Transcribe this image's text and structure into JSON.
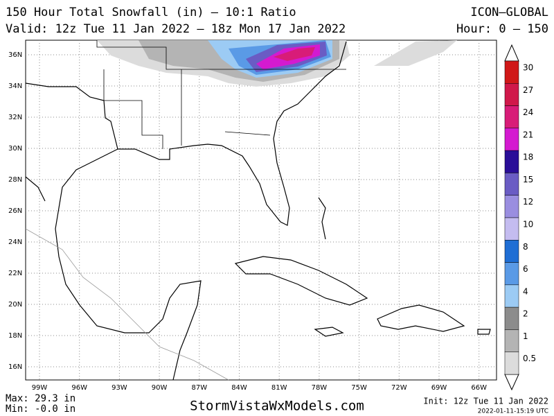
{
  "header": {
    "title": "150 Hour Total Snowfall (in) – 10:1 Ratio",
    "model": "ICON–GLOBAL",
    "valid": "Valid: 12z Tue 11 Jan 2022 – 18z Mon 17 Jan 2022",
    "hour": "Hour: 0 – 150"
  },
  "map": {
    "lat_labels": [
      "36N",
      "34N",
      "32N",
      "30N",
      "28N",
      "26N",
      "24N",
      "22N",
      "20N",
      "18N",
      "16N"
    ],
    "lon_labels": [
      "99W",
      "96W",
      "93W",
      "90W",
      "87W",
      "84W",
      "81W",
      "78W",
      "75W",
      "72W",
      "69W",
      "66W"
    ]
  },
  "legend": {
    "levels": [
      {
        "label": "30",
        "color": "#d01818"
      },
      {
        "label": "27",
        "color": "#d0184a"
      },
      {
        "label": "24",
        "color": "#d81c78"
      },
      {
        "label": "21",
        "color": "#d41ad0"
      },
      {
        "label": "18",
        "color": "#2a0e98"
      },
      {
        "label": "15",
        "color": "#6a5cc4"
      },
      {
        "label": "12",
        "color": "#9a8ee0"
      },
      {
        "label": "10",
        "color": "#c4bcf0"
      },
      {
        "label": "8",
        "color": "#1f6ed4"
      },
      {
        "label": "6",
        "color": "#5a9ae6"
      },
      {
        "label": "4",
        "color": "#9ccbf4"
      },
      {
        "label": "2",
        "color": "#8c8c8c"
      },
      {
        "label": "1",
        "color": "#b4b4b4"
      },
      {
        "label": "0.5",
        "color": "#dcdcdc"
      }
    ]
  },
  "footer": {
    "max": "Max: 29.3 in",
    "min": "Min: -0.0 in",
    "site": "StormVistaWxModels.com",
    "init": "Init: 12z Tue 11 Jan 2022",
    "stamp": "2022-01-11-15:19 UTC"
  }
}
